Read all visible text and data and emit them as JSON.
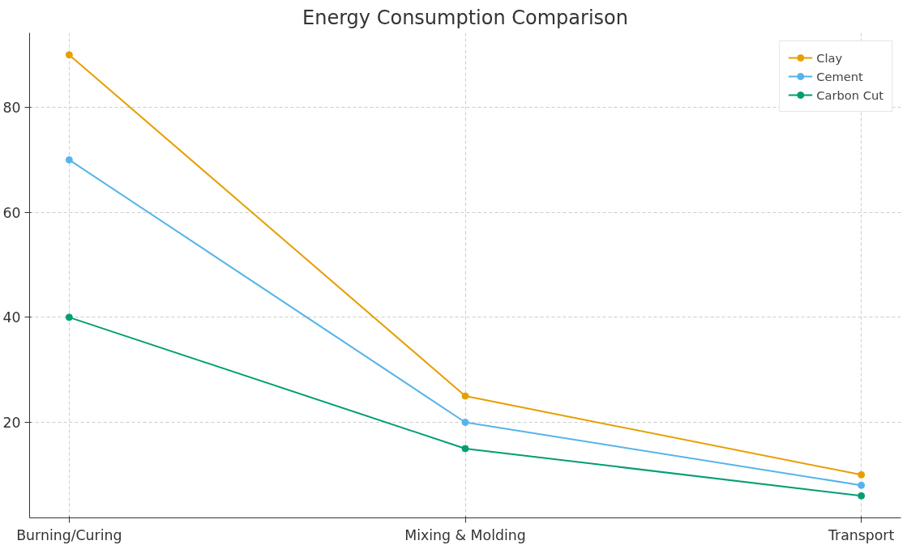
{
  "chart_data": {
    "type": "line",
    "title": "Energy Consumption Comparison",
    "categories": [
      "Burning/Curing",
      "Mixing & Molding",
      "Transport"
    ],
    "series": [
      {
        "name": "Clay",
        "color": "#e69f00",
        "values": [
          90,
          25,
          10
        ]
      },
      {
        "name": "Cement",
        "color": "#56b4e9",
        "values": [
          70,
          20,
          8
        ]
      },
      {
        "name": "Carbon Cut",
        "color": "#009e73",
        "values": [
          40,
          15,
          6
        ]
      }
    ],
    "ylim": [
      1.8,
      94.2
    ],
    "yticks": [
      20,
      40,
      60,
      80
    ],
    "grid": true,
    "legend": "top right",
    "marker": "circle",
    "line_style": "solid"
  }
}
